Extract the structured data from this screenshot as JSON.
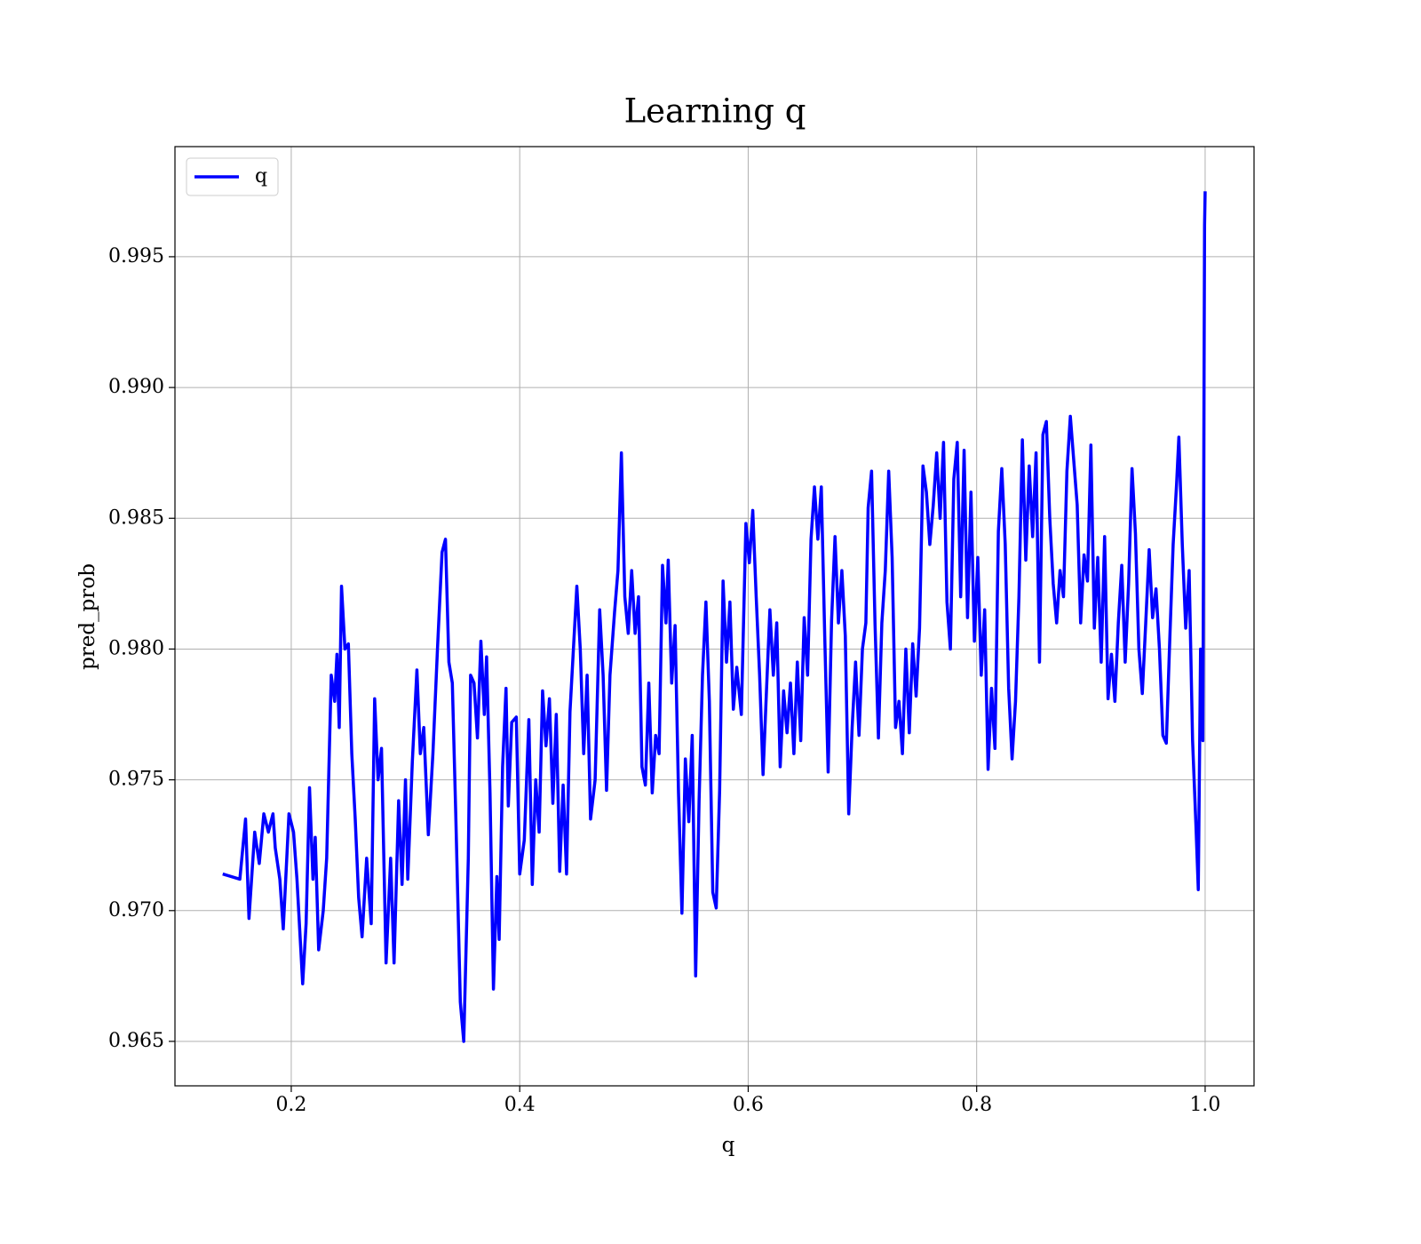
{
  "chart_data": {
    "type": "line",
    "title": "Learning q",
    "x_label": "q",
    "y_label": "pred_prob",
    "xlim": [
      0.0982,
      1.0428
    ],
    "ylim": [
      0.9633,
      0.99921
    ],
    "xticks": [
      0.2,
      0.4,
      0.6,
      0.8,
      {
        "value": 1,
        "label": "1.0"
      }
    ],
    "yticks": [
      0.965,
      {
        "value": 0.97,
        "label": "0.970"
      },
      0.975,
      {
        "value": 0.98,
        "label": "0.980"
      },
      0.985,
      {
        "value": 0.99,
        "label": "0.990"
      },
      0.995
    ],
    "grid": true,
    "legend": "upper left",
    "x": [
      0.14,
      0.155,
      0.16,
      0.163,
      0.168,
      0.172,
      0.176,
      0.18,
      0.184,
      0.186,
      0.19,
      0.193,
      0.198,
      0.202,
      0.205,
      0.21,
      0.213,
      0.216,
      0.219,
      0.221,
      0.224,
      0.228,
      0.231,
      0.235,
      0.238,
      0.24,
      0.242,
      0.244,
      0.247,
      0.25,
      0.253,
      0.256,
      0.259,
      0.262,
      0.266,
      0.27,
      0.273,
      0.276,
      0.279,
      0.283,
      0.287,
      0.29,
      0.294,
      0.297,
      0.3,
      0.302,
      0.306,
      0.31,
      0.313,
      0.316,
      0.32,
      0.324,
      0.328,
      0.332,
      0.335,
      0.338,
      0.341,
      0.344,
      0.348,
      0.351,
      0.355,
      0.357,
      0.36,
      0.363,
      0.366,
      0.369,
      0.371,
      0.374,
      0.377,
      0.38,
      0.382,
      0.385,
      0.388,
      0.39,
      0.393,
      0.397,
      0.4,
      0.404,
      0.408,
      0.411,
      0.414,
      0.417,
      0.42,
      0.423,
      0.426,
      0.429,
      0.432,
      0.435,
      0.438,
      0.441,
      0.444,
      0.447,
      0.45,
      0.453,
      0.456,
      0.459,
      0.462,
      0.466,
      0.47,
      0.473,
      0.476,
      0.479,
      0.483,
      0.486,
      0.489,
      0.492,
      0.495,
      0.498,
      0.501,
      0.504,
      0.507,
      0.51,
      0.513,
      0.516,
      0.519,
      0.522,
      0.525,
      0.528,
      0.53,
      0.533,
      0.536,
      0.539,
      0.542,
      0.545,
      0.548,
      0.551,
      0.554,
      0.557,
      0.56,
      0.563,
      0.566,
      0.569,
      0.572,
      0.575,
      0.578,
      0.581,
      0.584,
      0.587,
      0.59,
      0.594,
      0.598,
      0.601,
      0.604,
      0.607,
      0.61,
      0.613,
      0.616,
      0.619,
      0.622,
      0.625,
      0.628,
      0.631,
      0.634,
      0.637,
      0.64,
      0.643,
      0.646,
      0.649,
      0.652,
      0.655,
      0.658,
      0.661,
      0.664,
      0.667,
      0.67,
      0.673,
      0.676,
      0.679,
      0.682,
      0.685,
      0.688,
      0.691,
      0.694,
      0.697,
      0.7,
      0.703,
      0.705,
      0.708,
      0.711,
      0.714,
      0.717,
      0.72,
      0.723,
      0.726,
      0.729,
      0.732,
      0.735,
      0.738,
      0.741,
      0.744,
      0.747,
      0.75,
      0.753,
      0.756,
      0.759,
      0.762,
      0.765,
      0.768,
      0.771,
      0.774,
      0.777,
      0.78,
      0.783,
      0.786,
      0.789,
      0.792,
      0.795,
      0.798,
      0.801,
      0.804,
      0.807,
      0.81,
      0.813,
      0.816,
      0.819,
      0.822,
      0.825,
      0.828,
      0.831,
      0.834,
      0.837,
      0.84,
      0.843,
      0.846,
      0.849,
      0.852,
      0.855,
      0.858,
      0.861,
      0.864,
      0.867,
      0.87,
      0.873,
      0.876,
      0.879,
      0.882,
      0.885,
      0.888,
      0.891,
      0.894,
      0.897,
      0.9,
      0.903,
      0.906,
      0.909,
      0.912,
      0.915,
      0.918,
      0.921,
      0.924,
      0.927,
      0.93,
      0.933,
      0.936,
      0.939,
      0.942,
      0.945,
      0.948,
      0.951,
      0.954,
      0.957,
      0.96,
      0.963,
      0.966,
      0.969,
      0.972,
      0.975,
      0.977,
      0.98,
      0.983,
      0.986,
      0.989,
      0.992,
      0.994,
      0.996,
      0.998,
      0.9995,
      1.0
    ],
    "series": [
      {
        "name": "q",
        "color": "#0000ff",
        "values": [
          0.9714,
          0.9712,
          0.9735,
          0.9697,
          0.973,
          0.9718,
          0.9737,
          0.973,
          0.9737,
          0.9724,
          0.9712,
          0.9693,
          0.9737,
          0.973,
          0.9712,
          0.9672,
          0.9695,
          0.9747,
          0.9712,
          0.9728,
          0.9685,
          0.97,
          0.972,
          0.979,
          0.978,
          0.9798,
          0.977,
          0.9824,
          0.98,
          0.9802,
          0.976,
          0.9735,
          0.9705,
          0.969,
          0.972,
          0.9695,
          0.9781,
          0.975,
          0.9762,
          0.968,
          0.972,
          0.968,
          0.9742,
          0.971,
          0.975,
          0.9712,
          0.9757,
          0.9792,
          0.976,
          0.977,
          0.9729,
          0.976,
          0.98,
          0.9837,
          0.9842,
          0.9795,
          0.9787,
          0.9737,
          0.9665,
          0.965,
          0.972,
          0.979,
          0.9787,
          0.9766,
          0.9803,
          0.9775,
          0.9797,
          0.9745,
          0.967,
          0.9713,
          0.9689,
          0.9755,
          0.9785,
          0.974,
          0.9772,
          0.9774,
          0.9714,
          0.9727,
          0.9773,
          0.971,
          0.975,
          0.973,
          0.9784,
          0.9763,
          0.9781,
          0.9741,
          0.9775,
          0.9715,
          0.9748,
          0.9714,
          0.9776,
          0.98,
          0.9824,
          0.98,
          0.976,
          0.979,
          0.9735,
          0.975,
          0.9815,
          0.979,
          0.9746,
          0.979,
          0.9814,
          0.983,
          0.9875,
          0.982,
          0.9806,
          0.983,
          0.9806,
          0.982,
          0.9755,
          0.9748,
          0.9787,
          0.9745,
          0.9767,
          0.976,
          0.9832,
          0.981,
          0.9834,
          0.9787,
          0.9809,
          0.9745,
          0.9699,
          0.9758,
          0.9734,
          0.9767,
          0.9675,
          0.9742,
          0.979,
          0.9818,
          0.978,
          0.9707,
          0.9701,
          0.9746,
          0.9826,
          0.9795,
          0.9818,
          0.9777,
          0.9793,
          0.9775,
          0.9848,
          0.9833,
          0.9853,
          0.982,
          0.979,
          0.9752,
          0.9784,
          0.9815,
          0.979,
          0.981,
          0.9755,
          0.9784,
          0.9768,
          0.9787,
          0.976,
          0.9795,
          0.9765,
          0.9812,
          0.979,
          0.9842,
          0.9862,
          0.9842,
          0.9862,
          0.9805,
          0.9753,
          0.9811,
          0.9843,
          0.981,
          0.983,
          0.9805,
          0.9737,
          0.977,
          0.9795,
          0.9767,
          0.98,
          0.981,
          0.9854,
          0.9868,
          0.981,
          0.9766,
          0.981,
          0.983,
          0.9868,
          0.9835,
          0.977,
          0.978,
          0.976,
          0.98,
          0.9768,
          0.9802,
          0.9782,
          0.9808,
          0.987,
          0.986,
          0.984,
          0.9855,
          0.9875,
          0.985,
          0.9879,
          0.9818,
          0.98,
          0.9865,
          0.9879,
          0.982,
          0.9876,
          0.9812,
          0.986,
          0.9803,
          0.9835,
          0.979,
          0.9815,
          0.9754,
          0.9785,
          0.9762,
          0.9845,
          0.9869,
          0.984,
          0.9785,
          0.9758,
          0.978,
          0.982,
          0.988,
          0.9834,
          0.987,
          0.9843,
          0.9875,
          0.9795,
          0.9882,
          0.9887,
          0.985,
          0.9825,
          0.981,
          0.983,
          0.982,
          0.9868,
          0.9889,
          0.9872,
          0.9855,
          0.981,
          0.9836,
          0.9826,
          0.9878,
          0.9808,
          0.9835,
          0.9795,
          0.9843,
          0.9781,
          0.9798,
          0.978,
          0.981,
          0.9832,
          0.9795,
          0.9825,
          0.9869,
          0.9844,
          0.98,
          0.9783,
          0.981,
          0.9838,
          0.9812,
          0.9823,
          0.98,
          0.9767,
          0.9764,
          0.9803,
          0.984,
          0.9863,
          0.9881,
          0.984,
          0.9808,
          0.983,
          0.9765,
          0.9732,
          0.9708,
          0.98,
          0.9765,
          0.9962,
          0.9975
        ]
      }
    ]
  }
}
